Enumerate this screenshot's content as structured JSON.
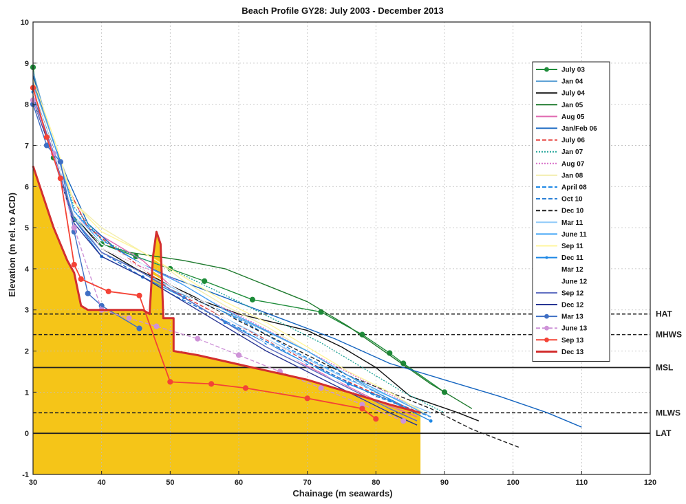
{
  "chart_data": {
    "type": "line",
    "title": "Beach Profile GY28: July 2003 - December 2013",
    "xlabel": "Chainage (m seawards)",
    "ylabel": "Elevation (m rel. to ACD)",
    "xlim": [
      30,
      120
    ],
    "ylim": [
      -1,
      10
    ],
    "x_ticks": [
      "30",
      "40",
      "50",
      "60",
      "70",
      "80",
      "90",
      "100",
      "110",
      "120"
    ],
    "y_ticks": [
      "-1",
      "0",
      "1",
      "2",
      "3",
      "4",
      "5",
      "6",
      "7",
      "8",
      "9",
      "10"
    ],
    "grid": true,
    "legend_position": "top-right",
    "reference_lines": [
      {
        "label": "HAT",
        "y": 2.9,
        "style": "dashed"
      },
      {
        "label": "MHWS",
        "y": 2.4,
        "style": "dashed"
      },
      {
        "label": "MSL",
        "y": 1.6,
        "style": "solid"
      },
      {
        "label": "MLWS",
        "y": 0.5,
        "style": "dashed"
      },
      {
        "label": "LAT",
        "y": 0.0,
        "style": "solid"
      }
    ],
    "fill_region": {
      "color": "#f5c518",
      "x": [
        30,
        30,
        31,
        33,
        35,
        36,
        37,
        38,
        40,
        42,
        44,
        46,
        47,
        47.5,
        48,
        48.6,
        49,
        50.5,
        50.5,
        54,
        58,
        62,
        66,
        70,
        74,
        78,
        82,
        86.5,
        86.5
      ],
      "y": [
        -1,
        6.5,
        6.0,
        5.0,
        4.2,
        3.9,
        3.1,
        3.0,
        3.0,
        3.0,
        3.0,
        3.0,
        2.9,
        4.3,
        4.9,
        4.6,
        2.8,
        2.8,
        2.0,
        1.9,
        1.75,
        1.6,
        1.45,
        1.3,
        1.1,
        0.9,
        0.7,
        0.5,
        -1
      ]
    },
    "series": [
      {
        "name": "July 03",
        "color": "#1e8c3a",
        "style": "solid",
        "marker": "circle",
        "x": [
          30,
          31,
          33,
          36,
          40,
          45,
          50,
          55,
          62,
          72,
          78,
          82,
          84,
          90
        ],
        "y": [
          8.9,
          7.8,
          6.7,
          5.2,
          4.6,
          4.3,
          4.0,
          3.7,
          3.25,
          2.95,
          2.4,
          1.95,
          1.7,
          1.0
        ]
      },
      {
        "name": "Jan 04",
        "color": "#5a9fd4",
        "style": "solid",
        "marker": "none",
        "x": [
          30,
          32,
          34,
          36,
          40,
          45,
          50,
          60,
          70,
          80,
          86
        ],
        "y": [
          8.8,
          7.6,
          6.5,
          5.2,
          4.4,
          4.0,
          3.5,
          2.8,
          2.0,
          1.0,
          0.5
        ]
      },
      {
        "name": "July 04",
        "color": "#111111",
        "style": "solid",
        "marker": "none",
        "x": [
          30,
          32,
          34,
          36,
          40,
          45,
          50,
          55,
          60,
          65,
          70,
          75,
          80,
          85,
          92,
          95
        ],
        "y": [
          8.7,
          7.5,
          6.4,
          5.3,
          4.5,
          4.0,
          3.6,
          3.2,
          2.9,
          2.7,
          2.5,
          2.1,
          1.6,
          0.9,
          0.5,
          0.3
        ]
      },
      {
        "name": "Jan 05",
        "color": "#1f7a2e",
        "style": "solid",
        "marker": "none",
        "x": [
          30,
          32,
          34,
          36,
          40,
          44,
          48,
          52,
          58,
          64,
          70,
          76,
          82,
          88,
          94
        ],
        "y": [
          8.6,
          7.4,
          6.3,
          5.3,
          4.6,
          4.4,
          4.3,
          4.2,
          4.0,
          3.6,
          3.2,
          2.6,
          1.9,
          1.2,
          0.6
        ]
      },
      {
        "name": "Aug 05",
        "color": "#e06ab0",
        "style": "solid",
        "marker": "none",
        "x": [
          30,
          32,
          35,
          38,
          42,
          46,
          50,
          56,
          62,
          68,
          74,
          80,
          86
        ],
        "y": [
          8.6,
          7.3,
          6.0,
          5.0,
          4.6,
          4.2,
          3.6,
          3.0,
          2.4,
          1.8,
          1.3,
          0.8,
          0.4
        ]
      },
      {
        "name": "Jan/Feb 06",
        "color": "#1565c0",
        "style": "solid",
        "marker": "none",
        "x": [
          30,
          32,
          35,
          38,
          42,
          46,
          50,
          58,
          66,
          74,
          82,
          90,
          98,
          105,
          110
        ],
        "y": [
          8.7,
          7.5,
          6.2,
          5.1,
          4.5,
          4.1,
          3.8,
          3.3,
          2.8,
          2.3,
          1.7,
          1.3,
          0.9,
          0.5,
          0.15
        ]
      },
      {
        "name": "July 06",
        "color": "#e53935",
        "style": "dashed",
        "marker": "none",
        "x": [
          30,
          32,
          35,
          38,
          42,
          46,
          50,
          58,
          66,
          74,
          82,
          88
        ],
        "y": [
          8.5,
          7.2,
          6.0,
          5.0,
          4.5,
          4.0,
          3.5,
          2.8,
          2.1,
          1.4,
          0.8,
          0.4
        ]
      },
      {
        "name": "Jan 07",
        "color": "#26a69a",
        "style": "dotted",
        "marker": "none",
        "x": [
          30,
          33,
          36,
          40,
          45,
          50,
          55,
          60,
          66,
          72,
          78,
          84,
          90
        ],
        "y": [
          8.4,
          7.0,
          5.5,
          4.7,
          4.3,
          4.0,
          3.6,
          3.2,
          2.7,
          2.2,
          1.6,
          1.0,
          0.5
        ]
      },
      {
        "name": "Aug 07",
        "color": "#d870c8",
        "style": "dotted",
        "marker": "none",
        "x": [
          30,
          33,
          36,
          40,
          45,
          50,
          56,
          62,
          70,
          78,
          86
        ],
        "y": [
          8.3,
          6.9,
          5.4,
          4.5,
          4.1,
          3.8,
          3.2,
          2.7,
          2.0,
          1.3,
          0.6
        ]
      },
      {
        "name": "Jan 08",
        "color": "#f3eeb0",
        "style": "solid",
        "marker": "none",
        "x": [
          30,
          33,
          36,
          40,
          44,
          48,
          52,
          58,
          64,
          70,
          76,
          82,
          87
        ],
        "y": [
          8.5,
          7.0,
          5.6,
          5.0,
          4.6,
          4.2,
          3.7,
          3.1,
          2.6,
          2.0,
          1.4,
          0.9,
          0.5
        ]
      },
      {
        "name": "April 08",
        "color": "#1e88e5",
        "style": "dashed",
        "marker": "none",
        "x": [
          30,
          33,
          36,
          40,
          44,
          50,
          56,
          62,
          68,
          74,
          80,
          86
        ],
        "y": [
          8.4,
          6.9,
          5.4,
          4.7,
          4.3,
          3.7,
          3.1,
          2.6,
          2.0,
          1.5,
          1.0,
          0.5
        ]
      },
      {
        "name": "Oct 10",
        "color": "#1976d2",
        "style": "dashed",
        "marker": "none",
        "x": [
          30,
          33,
          36,
          40,
          44,
          50,
          56,
          62,
          68,
          74,
          80,
          88
        ],
        "y": [
          8.2,
          6.8,
          5.2,
          4.4,
          4.0,
          3.4,
          2.9,
          2.4,
          1.9,
          1.4,
          0.9,
          0.4
        ]
      },
      {
        "name": "Dec 10",
        "color": "#222222",
        "style": "dashed",
        "marker": "none",
        "x": [
          30,
          33,
          36,
          40,
          46,
          52,
          58,
          64,
          70,
          76,
          82,
          88,
          94,
          101
        ],
        "y": [
          8.3,
          6.9,
          5.3,
          4.5,
          4.0,
          3.4,
          2.9,
          2.4,
          1.9,
          1.4,
          1.0,
          0.6,
          0.1,
          -0.35
        ]
      },
      {
        "name": "Mar 11",
        "color": "#90caf9",
        "style": "solid",
        "marker": "none",
        "x": [
          30,
          33,
          36,
          40,
          46,
          52,
          58,
          64,
          70,
          76,
          82,
          88
        ],
        "y": [
          8.4,
          7.0,
          5.3,
          4.4,
          3.9,
          3.4,
          2.8,
          2.3,
          1.8,
          1.3,
          0.9,
          0.5
        ]
      },
      {
        "name": "June 11",
        "color": "#42a5f5",
        "style": "solid",
        "marker": "none",
        "x": [
          30,
          33,
          36,
          40,
          46,
          52,
          58,
          64,
          70,
          76,
          82,
          88
        ],
        "y": [
          8.5,
          7.1,
          5.4,
          4.6,
          4.1,
          3.6,
          3.0,
          2.5,
          2.0,
          1.4,
          0.9,
          0.4
        ]
      },
      {
        "name": "Sep 11",
        "color": "#fff59d",
        "style": "solid",
        "marker": "none",
        "x": [
          30,
          33,
          36,
          40,
          46,
          52,
          58,
          64,
          70,
          76,
          82,
          87
        ],
        "y": [
          8.6,
          7.2,
          5.6,
          4.9,
          4.4,
          3.8,
          3.2,
          2.7,
          2.1,
          1.5,
          1.0,
          0.5
        ]
      },
      {
        "name": "Dec 11",
        "color": "#1e88e5",
        "style": "solid",
        "marker": "dot",
        "x": [
          30,
          33,
          36,
          40,
          46,
          52,
          58,
          64,
          70,
          76,
          82,
          88
        ],
        "y": [
          8.3,
          6.9,
          5.2,
          4.3,
          3.8,
          3.3,
          2.7,
          2.2,
          1.7,
          1.2,
          0.8,
          0.3
        ]
      },
      {
        "name": "Mar 12",
        "color": "#ffffff",
        "style": "solid",
        "marker": "none",
        "x": [
          30,
          33,
          36,
          40,
          46,
          52,
          58,
          64,
          70,
          76,
          82
        ],
        "y": [
          8.4,
          7.0,
          5.3,
          4.6,
          4.1,
          3.5,
          2.9,
          2.3,
          1.7,
          1.1,
          0.6
        ]
      },
      {
        "name": "June 12",
        "color": "#ffffff",
        "style": "solid",
        "marker": "none",
        "x": [
          30,
          33,
          36,
          40,
          46,
          52,
          58,
          64,
          70,
          76,
          82
        ],
        "y": [
          8.3,
          6.9,
          5.2,
          4.5,
          4.0,
          3.4,
          2.8,
          2.2,
          1.6,
          1.0,
          0.5
        ]
      },
      {
        "name": "Sep 12",
        "color": "#5c6bc0",
        "style": "solid",
        "marker": "none",
        "x": [
          30,
          33,
          36,
          40,
          46,
          52,
          58,
          64,
          70,
          76,
          82,
          86
        ],
        "y": [
          8.2,
          6.8,
          5.2,
          4.4,
          3.9,
          3.3,
          2.7,
          2.1,
          1.6,
          1.1,
          0.6,
          0.3
        ]
      },
      {
        "name": "Dec 12",
        "color": "#283593",
        "style": "solid",
        "marker": "none",
        "x": [
          30,
          33,
          36,
          40,
          46,
          52,
          58,
          64,
          70,
          76,
          82,
          86
        ],
        "y": [
          8.1,
          6.7,
          5.1,
          4.3,
          3.8,
          3.2,
          2.6,
          2.0,
          1.5,
          1.0,
          0.5,
          0.2
        ]
      },
      {
        "name": "Mar 13",
        "color": "#3f6fc4",
        "style": "solid",
        "marker": "circle",
        "x": [
          30,
          32,
          34,
          36,
          38,
          40,
          45.5
        ],
        "y": [
          8.0,
          7.0,
          6.6,
          4.9,
          3.4,
          3.1,
          2.55
        ]
      },
      {
        "name": "June 13",
        "color": "#ce93d8",
        "style": "dashed",
        "marker": "circle",
        "x": [
          30,
          33,
          36,
          40,
          44,
          48,
          54,
          60,
          66,
          72,
          78,
          84
        ],
        "y": [
          8.1,
          6.8,
          5.0,
          3.0,
          2.8,
          2.6,
          2.3,
          1.9,
          1.5,
          1.1,
          0.7,
          0.3
        ]
      },
      {
        "name": "Sep 13",
        "color": "#f44336",
        "style": "solid",
        "marker": "circle",
        "x": [
          30,
          32,
          34,
          36,
          37,
          41,
          45.5,
          50,
          56,
          61,
          70,
          78,
          80
        ],
        "y": [
          8.4,
          7.2,
          6.2,
          4.1,
          3.75,
          3.45,
          3.35,
          1.25,
          1.2,
          1.1,
          0.85,
          0.6,
          0.35
        ]
      },
      {
        "name": "Dec 13",
        "color": "#d32f2f",
        "style": "solid",
        "marker": "none",
        "x": [
          30,
          31,
          33,
          35,
          36,
          37,
          38,
          40,
          42,
          44,
          46,
          47,
          47.5,
          48,
          48.6,
          49,
          50.5,
          50.5,
          54,
          58,
          62,
          66,
          70,
          74,
          78,
          82,
          86.5
        ],
        "y": [
          6.5,
          6.0,
          5.0,
          4.2,
          3.9,
          3.1,
          3.0,
          3.0,
          3.0,
          3.0,
          3.0,
          2.9,
          4.3,
          4.9,
          4.6,
          2.8,
          2.8,
          2.0,
          1.9,
          1.75,
          1.6,
          1.45,
          1.3,
          1.1,
          0.9,
          0.7,
          0.5
        ]
      }
    ]
  }
}
